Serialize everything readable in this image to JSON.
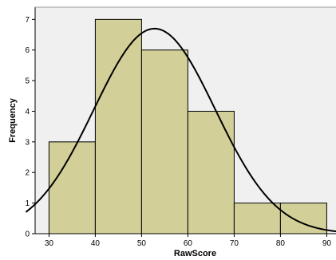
{
  "chart_data": {
    "type": "histogram",
    "xlabel": "RawScore",
    "ylabel": "Frequency",
    "xlim": [
      27,
      92
    ],
    "ylim": [
      0,
      7.4
    ],
    "x_ticks": [
      30,
      40,
      50,
      60,
      70,
      80,
      90
    ],
    "y_ticks": [
      0,
      1,
      2,
      3,
      4,
      5,
      6,
      7
    ],
    "bins": [
      {
        "start": 30,
        "end": 40,
        "value": 3
      },
      {
        "start": 40,
        "end": 50,
        "value": 7
      },
      {
        "start": 50,
        "end": 60,
        "value": 6
      },
      {
        "start": 60,
        "end": 70,
        "value": 4
      },
      {
        "start": 70,
        "end": 80,
        "value": 1
      },
      {
        "start": 80,
        "end": 90,
        "value": 1
      }
    ],
    "normal_curve": {
      "mean": 52.8,
      "sd": 13.1,
      "n": 22,
      "bin_width": 10
    },
    "colors": {
      "bar_fill": "#d3cf98",
      "bar_stroke": "#000000",
      "curve": "#000000",
      "background": "#f0f0f0"
    }
  }
}
